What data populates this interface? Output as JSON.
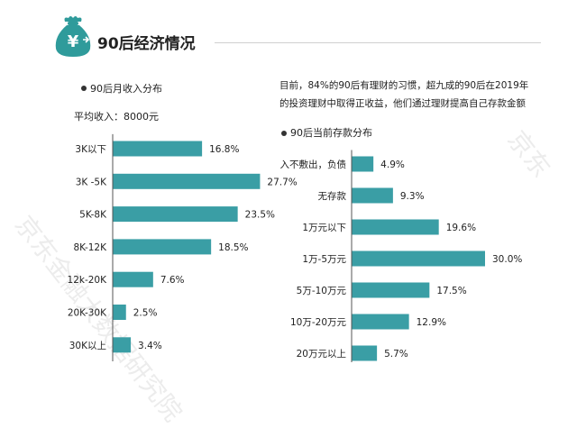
{
  "header": {
    "title": "90后经济情况",
    "icon": "money-bag-yuan-icon",
    "icon_color": "#2f9b9b"
  },
  "accent_color": "#3a9ea5",
  "left_panel": {
    "heading": "90后月收入分布",
    "average_label": "平均收入：8000元"
  },
  "right_panel": {
    "description_line1": "目前，84%的90后有理财的习惯，超九成的90后在2019年",
    "description_line2": "的投资理财中取得正收益，他们通过理财提高自己存款金额",
    "heading": "90后当前存款分布"
  },
  "watermark": "京东金融大数据研究院",
  "chart_data": [
    {
      "type": "bar",
      "orientation": "horizontal",
      "categories": [
        "3K以下",
        "3K -5K",
        "5K-8K",
        "8K-12K",
        "12k-20K",
        "20K-30K",
        "30K以上"
      ],
      "values": [
        16.8,
        27.7,
        23.5,
        18.5,
        7.6,
        2.5,
        3.4
      ],
      "value_labels": [
        "16.8%",
        "27.7%",
        "23.5%",
        "18.5%",
        "7.6%",
        "2.5%",
        "3.4%"
      ],
      "xlim": [
        0,
        30
      ],
      "grid": false,
      "bar_color": "#3a9ea5"
    },
    {
      "type": "bar",
      "orientation": "horizontal",
      "categories": [
        "入不敷出，负债",
        "无存款",
        "1万元以下",
        "1万-5万元",
        "5万-10万元",
        "10万-20万元",
        "20万元以上"
      ],
      "values": [
        4.9,
        9.3,
        19.6,
        30.0,
        17.5,
        12.9,
        5.7
      ],
      "value_labels": [
        "4.9%",
        "9.3%",
        "19.6%",
        "30.0%",
        "17.5%",
        "12.9%",
        "5.7%"
      ],
      "xlim": [
        0,
        30
      ],
      "grid": false,
      "bar_color": "#3a9ea5"
    }
  ]
}
